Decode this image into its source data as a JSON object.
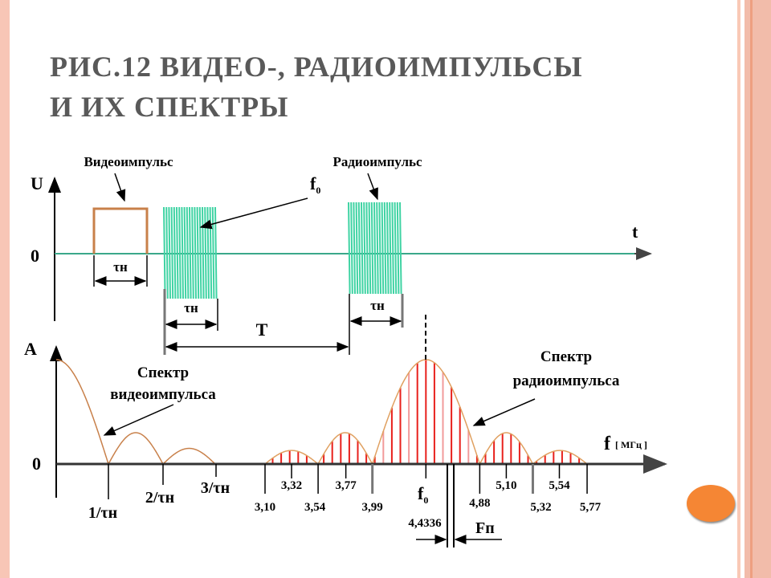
{
  "slide": {
    "title_line1": "РИС.12 ВИДЕО-, РАДИОИМПУЛЬСЫ",
    "title_line2": "И ИХ СПЕКТРЫ",
    "accent_color": "#f58634",
    "band_color": "#f4bfae"
  },
  "time_plot": {
    "y_axis_label": "U",
    "x_axis_label": "t",
    "zero_label": "0",
    "video_pulse_label": "Видеоимпульс",
    "radio_pulse_label": "Радиоимпульс",
    "carrier_label": "f",
    "carrier_sub": "0",
    "pulse_width_label": "τн",
    "period_label": "T",
    "video_color": "#c8804a",
    "radio_color": "#3fd3a3"
  },
  "spectrum_plot": {
    "y_axis_label": "A",
    "zero_label": "0",
    "x_axis_label": "f",
    "x_unit": "[ МГц ]",
    "video_spectrum_label_1": "Спектр",
    "video_spectrum_label_2": "видеоимпульса",
    "radio_spectrum_label_1": "Спектр",
    "radio_spectrum_label_2": "радиоимпульса",
    "video_ticks": [
      "1/τн",
      "2/τн",
      "3/τн"
    ],
    "carrier_label": "f",
    "carrier_sub": "0",
    "carrier_value": "4,4336",
    "line_spacing_label": "Fп",
    "line_color": "#e8201c",
    "envelope_color": "#e0a060"
  },
  "chart_data": {
    "type": "line",
    "radio_spectrum": {
      "zeros_mhz": [
        3.1,
        3.54,
        3.99,
        4.88,
        5.32,
        5.77
      ],
      "zero_labels": [
        "3,10",
        "3,54",
        "3,99",
        "4,88",
        "5,32",
        "5,77"
      ],
      "lobe_peaks_mhz": [
        3.32,
        3.77,
        4.4336,
        5.1,
        5.54
      ],
      "peak_labels": [
        "3,32",
        "3,77",
        "5,10",
        "5,54"
      ],
      "relative_amplitude": [
        0.13,
        0.3,
        1.0,
        0.3,
        0.13
      ]
    },
    "video_spectrum": {
      "zeros": [
        "1/τн",
        "2/τн",
        "3/τн"
      ],
      "relative_amplitude": [
        1.0,
        0.3,
        0.15
      ]
    }
  }
}
